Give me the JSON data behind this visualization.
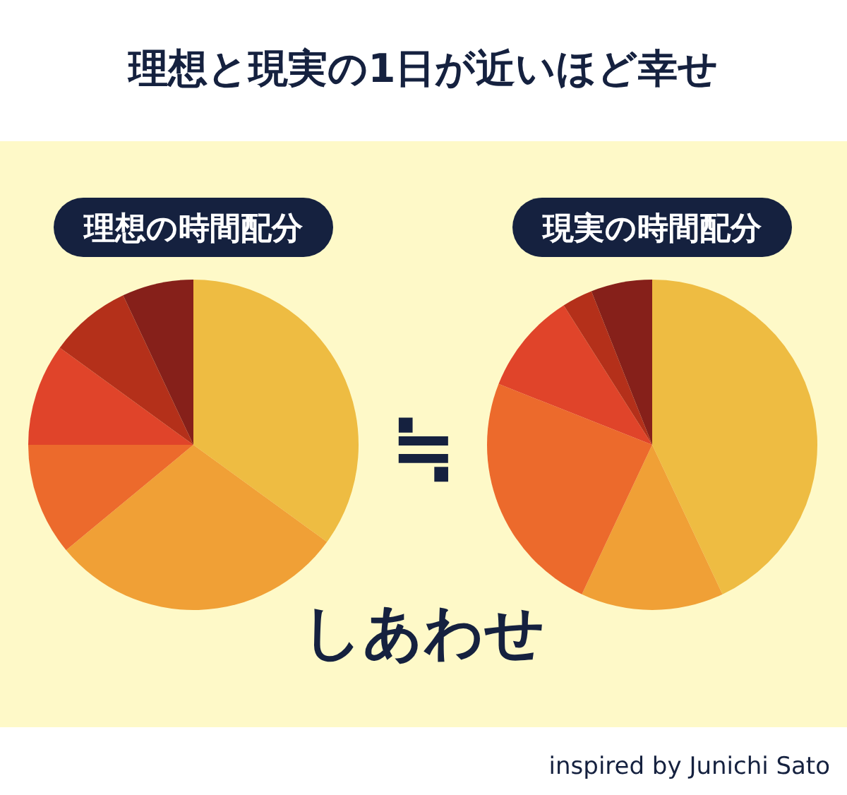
{
  "chart_data": [
    {
      "type": "other",
      "title": "理想と現実の1日が近いほど幸せ",
      "annotations": [
        "≒",
        "しあわせ",
        "inspired by Junichi Sato"
      ]
    },
    {
      "type": "pie",
      "title": "理想の時間配分",
      "categories": [
        null,
        null,
        null,
        null,
        null,
        null
      ],
      "values": [
        35,
        29,
        11,
        10,
        8,
        7
      ],
      "colors": [
        "#eebc42",
        "#f0a036",
        "#ec6a2c",
        "#e0442a",
        "#b4301a",
        "#86201a"
      ]
    },
    {
      "type": "pie",
      "title": "現実の時間配分",
      "categories": [
        null,
        null,
        null,
        null,
        null,
        null
      ],
      "values": [
        43,
        14,
        24,
        10,
        3,
        6
      ],
      "colors": [
        "#eebc42",
        "#f0a036",
        "#ec6a2c",
        "#e0442a",
        "#b4301a",
        "#86201a"
      ]
    }
  ]
}
